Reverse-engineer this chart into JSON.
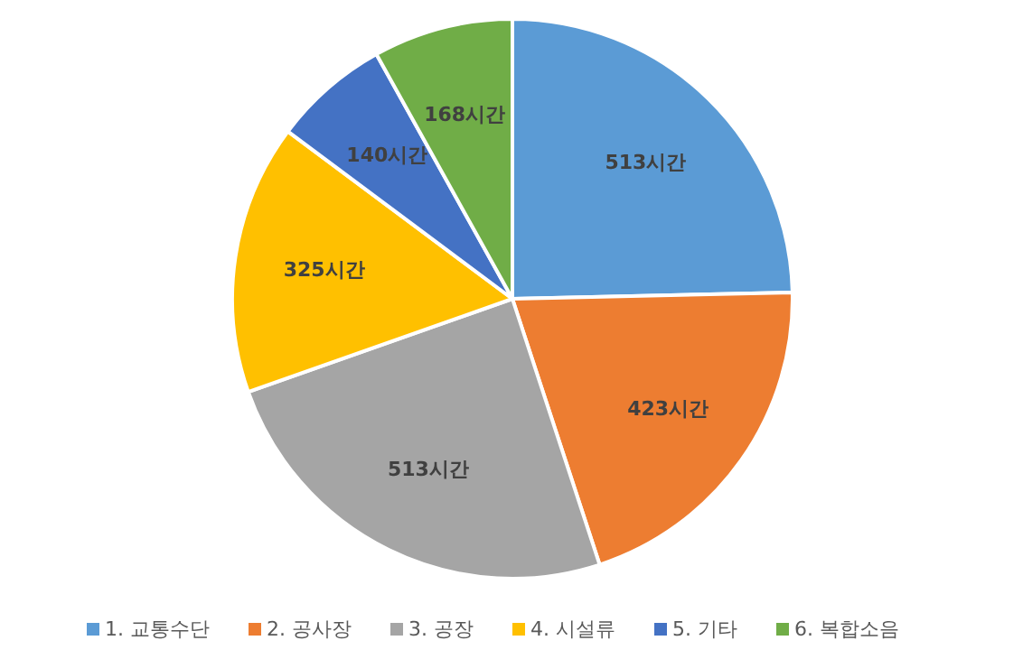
{
  "chart_data": {
    "type": "pie",
    "categories": [
      "1. 교통수단",
      "2. 공사장",
      "3. 공장",
      "4. 시설류",
      "5. 기타",
      "6. 복합소음"
    ],
    "values": [
      513,
      423,
      513,
      325,
      140,
      168
    ],
    "value_labels": [
      "513시간",
      "423시간",
      "513시간",
      "325시간",
      "140시간",
      "168시간"
    ],
    "colors": [
      "#5b9bd5",
      "#ed7d31",
      "#a5a5a5",
      "#ffc000",
      "#4472c4",
      "#70ad47"
    ],
    "legend": "bottom"
  }
}
